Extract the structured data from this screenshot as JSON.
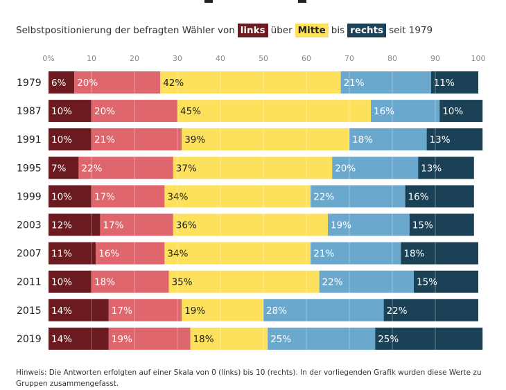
{
  "title": {
    "prefix": "Selbstpositionierung der befragten Wähler von",
    "tag_left": "links",
    "mid1": "über",
    "tag_mid": "Mitte",
    "mid2": "bis",
    "tag_right": "rechts",
    "suffix": "seit 1979"
  },
  "chart_data": {
    "type": "bar",
    "orientation": "horizontal",
    "stacked": true,
    "categories": [
      "1979",
      "1987",
      "1991",
      "1995",
      "1999",
      "2003",
      "2007",
      "2011",
      "2015",
      "2019"
    ],
    "series": [
      {
        "color": "#6b1a1f",
        "text_color": "#ffffff",
        "values": [
          6,
          10,
          10,
          7,
          10,
          12,
          11,
          10,
          14,
          14
        ]
      },
      {
        "color": "#e0666d",
        "text_color": "#ffffff",
        "values": [
          20,
          20,
          21,
          22,
          17,
          17,
          16,
          18,
          17,
          19
        ]
      },
      {
        "color": "#fde05b",
        "text_color": "#222222",
        "values": [
          42,
          45,
          39,
          37,
          34,
          36,
          34,
          35,
          19,
          18
        ]
      },
      {
        "color": "#6aa8cd",
        "text_color": "#ffffff",
        "values": [
          21,
          16,
          18,
          20,
          22,
          19,
          21,
          22,
          28,
          25
        ]
      },
      {
        "color": "#1b4156",
        "text_color": "#ffffff",
        "values": [
          11,
          10,
          13,
          13,
          16,
          15,
          18,
          15,
          22,
          25
        ]
      }
    ],
    "value_suffix": "%",
    "xlim": [
      0,
      100
    ],
    "xticks": [
      "0%",
      "10",
      "20",
      "30",
      "40",
      "50",
      "60",
      "70",
      "80",
      "90",
      "100"
    ],
    "xtick_values": [
      0,
      10,
      20,
      30,
      40,
      50,
      60,
      70,
      80,
      90,
      100
    ],
    "grid": true
  },
  "note": "Hinweis: Die Antworten erfolgten auf einer Skala von 0 (links) bis 10 (rechts). In der vorliegenden Grafik wurden diese Werte zu Gruppen zusammengefasst."
}
